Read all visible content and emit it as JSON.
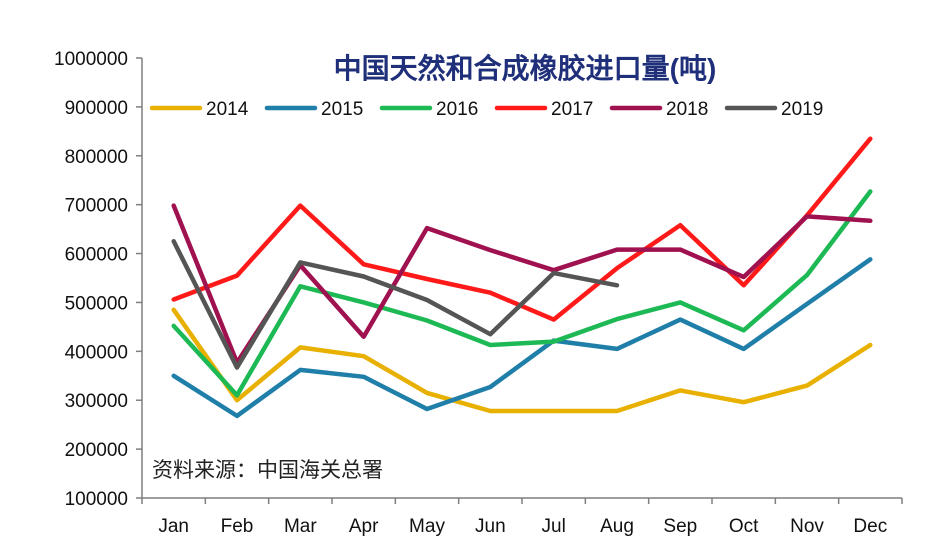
{
  "chart_data": {
    "type": "line",
    "title": "中国天然和合成橡胶进口量(吨)",
    "source_note": "资料来源：中国海关总署",
    "xlabel": "",
    "ylabel": "",
    "categories": [
      "Jan",
      "Feb",
      "Mar",
      "Apr",
      "May",
      "Jun",
      "Jul",
      "Aug",
      "Sep",
      "Oct",
      "Nov",
      "Dec"
    ],
    "ylim": [
      100000,
      1000000
    ],
    "yticks": [
      "100000",
      "200000",
      "300000",
      "400000",
      "500000",
      "600000",
      "700000",
      "800000",
      "900000",
      "1000000"
    ],
    "grid": false,
    "legend_position": "top",
    "series": [
      {
        "name": "2014",
        "color": "#E8B000",
        "values": [
          485000,
          300000,
          408000,
          390000,
          315000,
          278000,
          278000,
          278000,
          320000,
          296000,
          330000,
          413000
        ]
      },
      {
        "name": "2015",
        "color": "#1F7FA8",
        "values": [
          350000,
          268000,
          362000,
          348000,
          282000,
          327000,
          422000,
          405000,
          465000,
          405000,
          497000,
          588000
        ]
      },
      {
        "name": "2016",
        "color": "#1DB954",
        "values": [
          452000,
          310000,
          533000,
          500000,
          463000,
          413000,
          420000,
          466000,
          500000,
          443000,
          556000,
          727000
        ]
      },
      {
        "name": "2017",
        "color": "#FF1A1A",
        "values": [
          506000,
          555000,
          698000,
          578000,
          548000,
          520000,
          465000,
          570000,
          658000,
          535000,
          678000,
          835000
        ]
      },
      {
        "name": "2018",
        "color": "#A0114F",
        "values": [
          698000,
          377000,
          576000,
          430000,
          652000,
          607000,
          566000,
          608000,
          608000,
          552000,
          676000,
          667000
        ]
      },
      {
        "name": "2019",
        "color": "#555555",
        "values": [
          625000,
          367000,
          582000,
          553000,
          505000,
          435000,
          560000,
          535000,
          null,
          null,
          null,
          null
        ]
      }
    ]
  }
}
